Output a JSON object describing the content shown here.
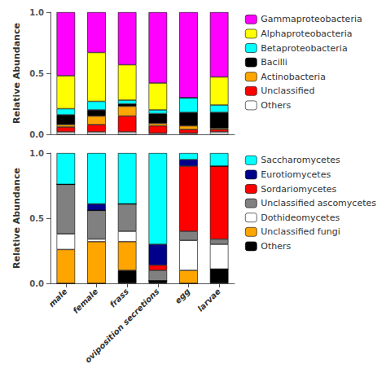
{
  "chart_data": [
    {
      "type": "bar",
      "stacked": true,
      "categories": [
        "male",
        "female",
        "frass",
        "oviposition secretions",
        "egg",
        "larvae"
      ],
      "ylabel": "Relative Abundance",
      "ylim": [
        0,
        1.0
      ],
      "yticks": [
        {
          "value": 0,
          "label": "0.0"
        },
        0.5,
        {
          "value": 1.0,
          "label": "1.0"
        }
      ],
      "grid": false,
      "legend": "right",
      "tick_labels": "y",
      "series": [
        {
          "name": "Others",
          "color": "#FFFFFF",
          "values": [
            0.02,
            0.02,
            0.02,
            0.01,
            0.01,
            0.02
          ]
        },
        {
          "name": "Unclassified",
          "color": "#FF0000",
          "values": [
            0.04,
            0.06,
            0.13,
            0.06,
            0.03,
            0.02
          ]
        },
        {
          "name": "Actinobacteria",
          "color": "#FFA500",
          "values": [
            0.02,
            0.07,
            0.08,
            0.02,
            0.03,
            0.01
          ]
        },
        {
          "name": "Bacilli",
          "color": "#000000",
          "values": [
            0.08,
            0.05,
            0.02,
            0.08,
            0.11,
            0.13
          ]
        },
        {
          "name": "Betaproteobacteria",
          "color": "#00FFFF",
          "values": [
            0.05,
            0.07,
            0.03,
            0.03,
            0.12,
            0.06
          ]
        },
        {
          "name": "Alphaproteobacteria",
          "color": "#FFFF00",
          "values": [
            0.27,
            0.4,
            0.29,
            0.22,
            0.0,
            0.23
          ]
        },
        {
          "name": "Gammaproteobacteria",
          "color": "#FF00FF",
          "values": [
            0.52,
            0.33,
            0.43,
            0.58,
            0.7,
            0.53
          ]
        }
      ]
    },
    {
      "type": "bar",
      "stacked": true,
      "categories": [
        "male",
        "female",
        "frass",
        "oviposition secretions",
        "egg",
        "larvae"
      ],
      "ylabel": "Relative Abundance",
      "ylim": [
        0,
        1.0
      ],
      "yticks": [
        {
          "value": 0,
          "label": "0.0"
        },
        0.5,
        {
          "value": 1.0,
          "label": "1.0"
        }
      ],
      "grid": false,
      "legend": "right",
      "series": [
        {
          "name": "Others",
          "color": "#000000",
          "values": [
            0.0,
            0.0,
            0.1,
            0.02,
            0.0,
            0.11
          ]
        },
        {
          "name": "Unclassified fungi",
          "color": "#FFA500",
          "values": [
            0.26,
            0.32,
            0.22,
            0.0,
            0.1,
            0.0
          ]
        },
        {
          "name": "Dothideomycetes",
          "color": "#FFFFFF",
          "values": [
            0.12,
            0.02,
            0.08,
            0.0,
            0.23,
            0.19
          ]
        },
        {
          "name": "Unclassified ascomycetes",
          "color": "#808080",
          "values": [
            0.38,
            0.22,
            0.21,
            0.08,
            0.07,
            0.04
          ]
        },
        {
          "name": "Sordariomycetes",
          "color": "#FF0000",
          "values": [
            0.0,
            0.0,
            0.0,
            0.04,
            0.5,
            0.56
          ]
        },
        {
          "name": "Eurotiomycetes",
          "color": "#00008B",
          "values": [
            0.0,
            0.05,
            0.0,
            0.16,
            0.05,
            0.0
          ]
        },
        {
          "name": "Saccharomycetes",
          "color": "#00FFFF",
          "values": [
            0.24,
            0.39,
            0.39,
            0.7,
            0.05,
            0.1
          ]
        }
      ]
    }
  ]
}
